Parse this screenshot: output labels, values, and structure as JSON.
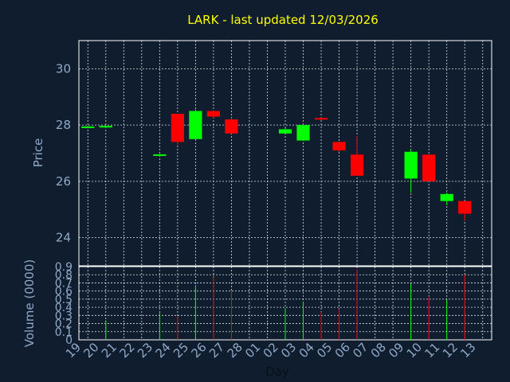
{
  "chart_data": {
    "type": "candlestick",
    "title": "LARK - last updated 12/03/2026",
    "price_label": "Price",
    "volume_label": "Volume (0000)",
    "xlabel": "Day",
    "price_ylim": [
      23.0,
      31.0
    ],
    "price_ticks": [
      "24",
      "26",
      "28",
      "30"
    ],
    "price_tick_values": [
      24,
      26,
      28,
      30
    ],
    "volume_ylim": [
      0,
      0.9
    ],
    "volume_ticks": [
      "0",
      "0.1",
      "0.2",
      "0.3",
      "0.4",
      "0.5",
      "0.6",
      "0.7",
      "0.8",
      "0.9"
    ],
    "volume_tick_values": [
      0,
      0.1,
      0.2,
      0.3,
      0.4,
      0.5,
      0.6,
      0.7,
      0.8,
      0.9
    ],
    "x_ticks": [
      "19",
      "20",
      "21",
      "22",
      "23",
      "24",
      "25",
      "26",
      "27",
      "28",
      "01",
      "02",
      "03",
      "04",
      "05",
      "06",
      "07",
      "08",
      "09",
      "10",
      "11",
      "12",
      "13"
    ],
    "candles": [
      {
        "day": "19",
        "open": 27.9,
        "close": 27.95,
        "high": 27.97,
        "low": 27.88,
        "volume": 0.0
      },
      {
        "day": "20",
        "open": 27.92,
        "close": 27.97,
        "high": 27.98,
        "low": 27.9,
        "volume": 0.24
      },
      {
        "day": "23",
        "open": 26.92,
        "close": 26.96,
        "high": 26.97,
        "low": 26.9,
        "volume": 0.33
      },
      {
        "day": "24",
        "open": 28.4,
        "close": 27.4,
        "high": 28.4,
        "low": 27.3,
        "volume": 0.29
      },
      {
        "day": "25",
        "open": 27.5,
        "close": 28.5,
        "high": 28.55,
        "low": 27.5,
        "volume": 0.67
      },
      {
        "day": "26",
        "open": 28.5,
        "close": 28.3,
        "high": 28.5,
        "low": 28.25,
        "volume": 0.77
      },
      {
        "day": "27",
        "open": 28.2,
        "close": 27.7,
        "high": 28.25,
        "low": 27.7,
        "volume": 0.6
      },
      {
        "day": "02",
        "open": 27.7,
        "close": 27.85,
        "high": 27.9,
        "low": 27.7,
        "volume": 0.39
      },
      {
        "day": "03",
        "open": 27.45,
        "close": 28.0,
        "high": 28.05,
        "low": 27.45,
        "volume": 0.47
      },
      {
        "day": "04",
        "open": 28.25,
        "close": 28.2,
        "high": 28.27,
        "low": 28.17,
        "volume": 0.34
      },
      {
        "day": "05",
        "open": 27.4,
        "close": 27.1,
        "high": 27.4,
        "low": 27.05,
        "volume": 0.38
      },
      {
        "day": "06",
        "open": 26.95,
        "close": 26.2,
        "high": 27.6,
        "low": 26.2,
        "volume": 0.86
      },
      {
        "day": "09",
        "open": 26.1,
        "close": 27.05,
        "high": 27.15,
        "low": 25.6,
        "volume": 0.69
      },
      {
        "day": "10",
        "open": 26.95,
        "close": 26.0,
        "high": 26.95,
        "low": 26.0,
        "volume": 0.52
      },
      {
        "day": "11",
        "open": 25.3,
        "close": 25.55,
        "high": 25.6,
        "low": 25.15,
        "volume": 0.49
      },
      {
        "day": "12",
        "open": 25.3,
        "close": 24.85,
        "high": 25.3,
        "low": 24.6,
        "volume": 0.8
      }
    ],
    "up_color": "#00ff00",
    "down_color": "#ff0000",
    "background": "#0f1d2e",
    "grid": true
  }
}
